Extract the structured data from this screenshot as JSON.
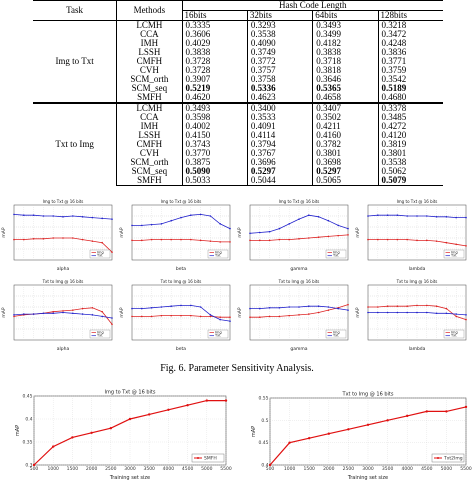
{
  "table": {
    "headers": {
      "task": "Task",
      "methods": "Methods",
      "hash_code_length": "Hash Code Length",
      "bits": [
        "16bits",
        "32bits",
        "64bits",
        "128bits"
      ]
    },
    "groups": [
      {
        "task": "Img to Txt",
        "rows": [
          {
            "method": "LCMH",
            "values": [
              "0.3335",
              "0.3293",
              "0.3493",
              "0.3218"
            ]
          },
          {
            "method": "CCA",
            "values": [
              "0.3606",
              "0.3538",
              "0.3499",
              "0.3472"
            ]
          },
          {
            "method": "IMH",
            "values": [
              "0.4029",
              "0.4090",
              "0.4182",
              "0.4248"
            ]
          },
          {
            "method": "LSSH",
            "values": [
              "0.3838",
              "0.3749",
              "0.3838",
              "0.3836"
            ]
          },
          {
            "method": "CMFH",
            "values": [
              "0.3728",
              "0.3772",
              "0.3718",
              "0.3771"
            ]
          },
          {
            "method": "CVH",
            "values": [
              "0.3728",
              "0.3757",
              "0.3818",
              "0.3759"
            ]
          },
          {
            "method": "SCM_orth",
            "values": [
              "0.3907",
              "0.3758",
              "0.3646",
              "0.3542"
            ]
          },
          {
            "method": "SCM_seq",
            "values": [
              "0.5219",
              "0.5336",
              "0.5365",
              "0.5189"
            ]
          },
          {
            "method": "SMFH",
            "values": [
              "0.4620",
              "0.4623",
              "0.4658",
              "0.4680"
            ]
          }
        ]
      },
      {
        "task": "Txt to Img",
        "rows": [
          {
            "method": "LCMH",
            "values": [
              "0.3493",
              "0.3400",
              "0.3407",
              "0.3378"
            ]
          },
          {
            "method": "CCA",
            "values": [
              "0.3598",
              "0.3533",
              "0.3502",
              "0.3485"
            ]
          },
          {
            "method": "IMH",
            "values": [
              "0.4002",
              "0.4091",
              "0.4211",
              "0.4272"
            ]
          },
          {
            "method": "LSSH",
            "values": [
              "0.4150",
              "0.4114",
              "0.4160",
              "0.4120"
            ]
          },
          {
            "method": "CMFH",
            "values": [
              "0.3743",
              "0.3794",
              "0.3782",
              "0.3819"
            ]
          },
          {
            "method": "CVH",
            "values": [
              "0.3770",
              "0.3767",
              "0.3801",
              "0.3801"
            ]
          },
          {
            "method": "SCM_orth",
            "values": [
              "0.3875",
              "0.3696",
              "0.3698",
              "0.3538"
            ]
          },
          {
            "method": "SCM_seq",
            "values": [
              "0.5090",
              "0.5297",
              "0.5297",
              "0.5062"
            ]
          },
          {
            "method": "SMFH",
            "values": [
              "0.5033",
              "0.5044",
              "0.5065",
              "0.5079"
            ]
          }
        ]
      }
    ],
    "bold": [
      [
        1,
        7,
        0
      ],
      [
        1,
        7,
        1
      ],
      [
        1,
        7,
        2
      ],
      [
        1,
        7,
        3
      ],
      [
        2,
        7,
        0
      ],
      [
        2,
        7,
        1
      ],
      [
        2,
        7,
        2
      ],
      [
        2,
        8,
        3
      ]
    ]
  },
  "caption": "Fig. 6.   Parameter Sensitivity Analysis.",
  "sensitivity_plots": [
    {
      "title": "Img to Txt @ 16 bits",
      "xlabel": "alpha",
      "ylabel": "mAP",
      "legend": [
        "Img",
        "Txt"
      ],
      "red": [
        0.46,
        0.46,
        0.47,
        0.47,
        0.48,
        0.48,
        0.48,
        0.46,
        0.44,
        0.42,
        0.3
      ],
      "blue": [
        0.78,
        0.77,
        0.77,
        0.76,
        0.76,
        0.75,
        0.76,
        0.75,
        0.74,
        0.73,
        0.72
      ]
    },
    {
      "title": "Img to Txt @ 16 bits",
      "xlabel": "beta",
      "ylabel": "mAP",
      "legend": [
        "Img",
        "Txt"
      ],
      "red": [
        0.45,
        0.45,
        0.46,
        0.46,
        0.46,
        0.46,
        0.46,
        0.45,
        0.44,
        0.43,
        0.43
      ],
      "blue": [
        0.64,
        0.64,
        0.65,
        0.66,
        0.7,
        0.74,
        0.77,
        0.78,
        0.76,
        0.66,
        0.6
      ]
    },
    {
      "title": "Img to Txt @ 16 bits",
      "xlabel": "gamma",
      "ylabel": "mAP",
      "legend": [
        "Img",
        "Txt"
      ],
      "red": [
        0.45,
        0.45,
        0.45,
        0.46,
        0.46,
        0.47,
        0.48,
        0.49,
        0.5,
        0.51,
        0.52
      ],
      "blue": [
        0.54,
        0.55,
        0.56,
        0.6,
        0.66,
        0.72,
        0.77,
        0.75,
        0.7,
        0.64,
        0.6
      ]
    },
    {
      "title": "Img to Txt @ 16 bits",
      "xlabel": "lambda",
      "ylabel": "mAP",
      "legend": [
        "Img",
        "Txt"
      ],
      "red": [
        0.46,
        0.46,
        0.46,
        0.46,
        0.46,
        0.45,
        0.45,
        0.44,
        0.42,
        0.4,
        0.38
      ],
      "blue": [
        0.76,
        0.77,
        0.77,
        0.77,
        0.76,
        0.76,
        0.76,
        0.75,
        0.75,
        0.74,
        0.74
      ]
    },
    {
      "title": "Txt to Img @ 16 bits",
      "xlabel": "alpha",
      "ylabel": "mAP",
      "legend": [
        "Img",
        "Txt"
      ],
      "red": [
        0.5,
        0.52,
        0.53,
        0.54,
        0.56,
        0.57,
        0.58,
        0.6,
        0.61,
        0.56,
        0.4
      ],
      "blue": [
        0.52,
        0.53,
        0.53,
        0.54,
        0.54,
        0.55,
        0.54,
        0.53,
        0.52,
        0.5,
        0.48
      ]
    },
    {
      "title": "Txt to Img @ 16 bits",
      "xlabel": "beta",
      "ylabel": "mAP",
      "legend": [
        "Img",
        "Txt"
      ],
      "red": [
        0.5,
        0.5,
        0.5,
        0.51,
        0.51,
        0.51,
        0.51,
        0.5,
        0.5,
        0.49,
        0.49
      ],
      "blue": [
        0.6,
        0.6,
        0.61,
        0.62,
        0.63,
        0.64,
        0.64,
        0.62,
        0.52,
        0.46,
        0.44
      ]
    },
    {
      "title": "Txt to Img @ 16 bits",
      "xlabel": "gamma",
      "ylabel": "mAP",
      "legend": [
        "Img",
        "Txt"
      ],
      "red": [
        0.49,
        0.49,
        0.5,
        0.5,
        0.51,
        0.52,
        0.53,
        0.55,
        0.58,
        0.61,
        0.65
      ],
      "blue": [
        0.6,
        0.6,
        0.61,
        0.61,
        0.62,
        0.62,
        0.63,
        0.63,
        0.62,
        0.6,
        0.58
      ]
    },
    {
      "title": "Txt to Img @ 16 bits",
      "xlabel": "lambda",
      "ylabel": "mAP",
      "legend": [
        "Img",
        "Txt"
      ],
      "red": [
        0.62,
        0.62,
        0.63,
        0.63,
        0.63,
        0.64,
        0.64,
        0.63,
        0.6,
        0.5,
        0.46
      ],
      "blue": [
        0.55,
        0.55,
        0.55,
        0.55,
        0.55,
        0.55,
        0.55,
        0.54,
        0.54,
        0.53,
        0.52
      ]
    }
  ],
  "training_plots": [
    {
      "title": "Img to Txt @ 16 bits",
      "xlabel": "Training set size",
      "ylabel": "mAP",
      "legend": "SMFH",
      "x": [
        500,
        1000,
        1500,
        2000,
        2500,
        3000,
        3500,
        4000,
        4500,
        5000,
        5500
      ],
      "y": [
        0.3,
        0.34,
        0.36,
        0.37,
        0.38,
        0.4,
        0.41,
        0.42,
        0.43,
        0.44,
        0.44
      ],
      "xticks": [
        "500",
        "1000",
        "1500",
        "2000",
        "2500",
        "3000",
        "3500",
        "4000",
        "4500",
        "5000",
        "5500"
      ],
      "yticks": [
        "0.3",
        "0.35",
        "0.4",
        "0.45"
      ]
    },
    {
      "title": "Txt to Img @ 16 bits",
      "xlabel": "Training set size",
      "ylabel": "mAP",
      "legend": "Txt2Img",
      "x": [
        500,
        1000,
        1500,
        2000,
        2500,
        3000,
        3500,
        4000,
        4500,
        5000,
        5500
      ],
      "y": [
        0.4,
        0.45,
        0.46,
        0.47,
        0.48,
        0.49,
        0.5,
        0.51,
        0.52,
        0.52,
        0.53
      ],
      "xticks": [
        "500",
        "1000",
        "1500",
        "2000",
        "2500",
        "3000",
        "3500",
        "4000",
        "4500",
        "5000",
        "5500"
      ],
      "yticks": [
        "0.4",
        "0.45",
        "0.5",
        "0.55"
      ]
    }
  ]
}
